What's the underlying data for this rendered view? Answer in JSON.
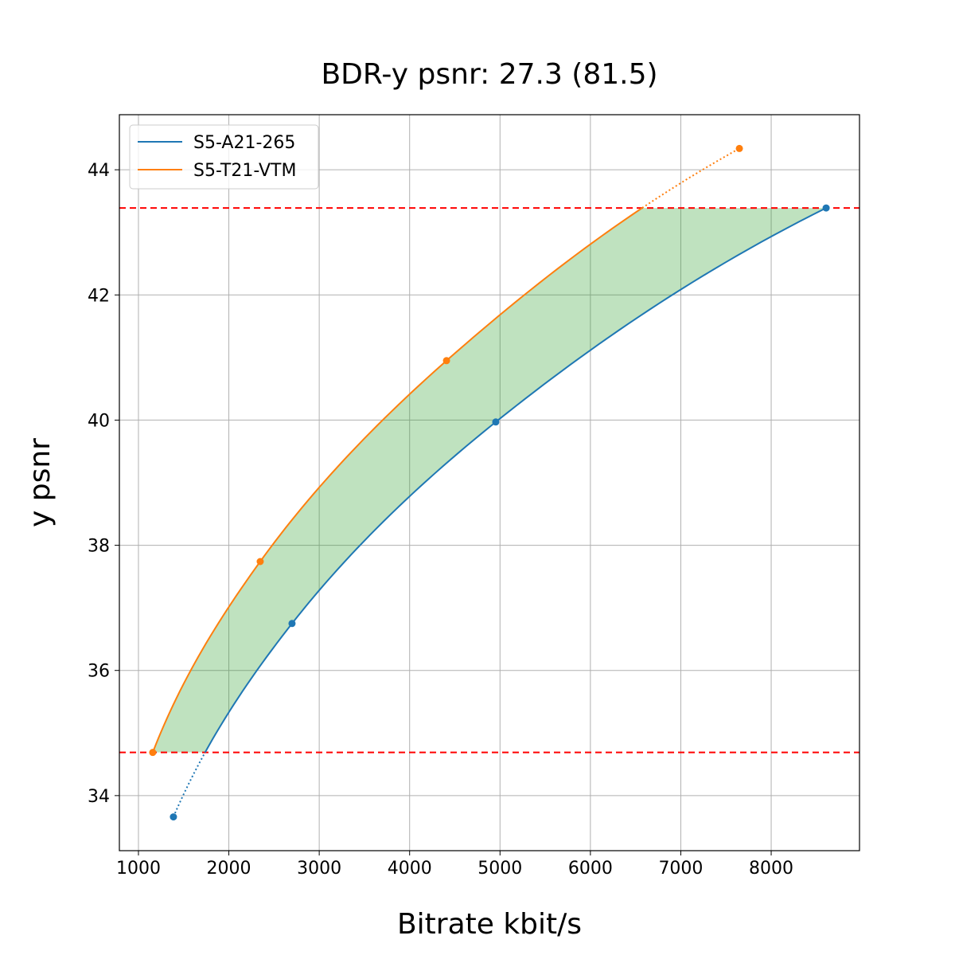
{
  "chart_data": {
    "type": "line",
    "title": "BDR-y psnr: 27.3 (81.5)",
    "xlabel": "Bitrate kbit/s",
    "ylabel": "y psnr",
    "xlim": [
      789,
      8977
    ],
    "ylim": [
      33.12,
      44.88
    ],
    "xticks": [
      1000,
      2000,
      3000,
      4000,
      5000,
      6000,
      7000,
      8000
    ],
    "yticks": [
      34,
      36,
      38,
      40,
      42,
      44
    ],
    "grid": true,
    "legend_position": "top-left",
    "series": [
      {
        "name": "S5-A21-265",
        "color": "#1f77b4",
        "x": [
          1387,
          2699,
          4953,
          8608
        ],
        "y": [
          33.66,
          36.75,
          39.97,
          43.39
        ]
      },
      {
        "name": "S5-T21-VTM",
        "color": "#ff7f0e",
        "x": [
          1158,
          2347,
          4408,
          7648
        ],
        "y": [
          34.69,
          37.74,
          40.95,
          44.34
        ]
      }
    ],
    "hlines": [
      {
        "y": 43.39,
        "color": "#ff0000",
        "style": "dashed"
      },
      {
        "y": 34.69,
        "color": "#ff0000",
        "style": "dashed"
      }
    ],
    "fill_between_color": "#2ca02c"
  }
}
